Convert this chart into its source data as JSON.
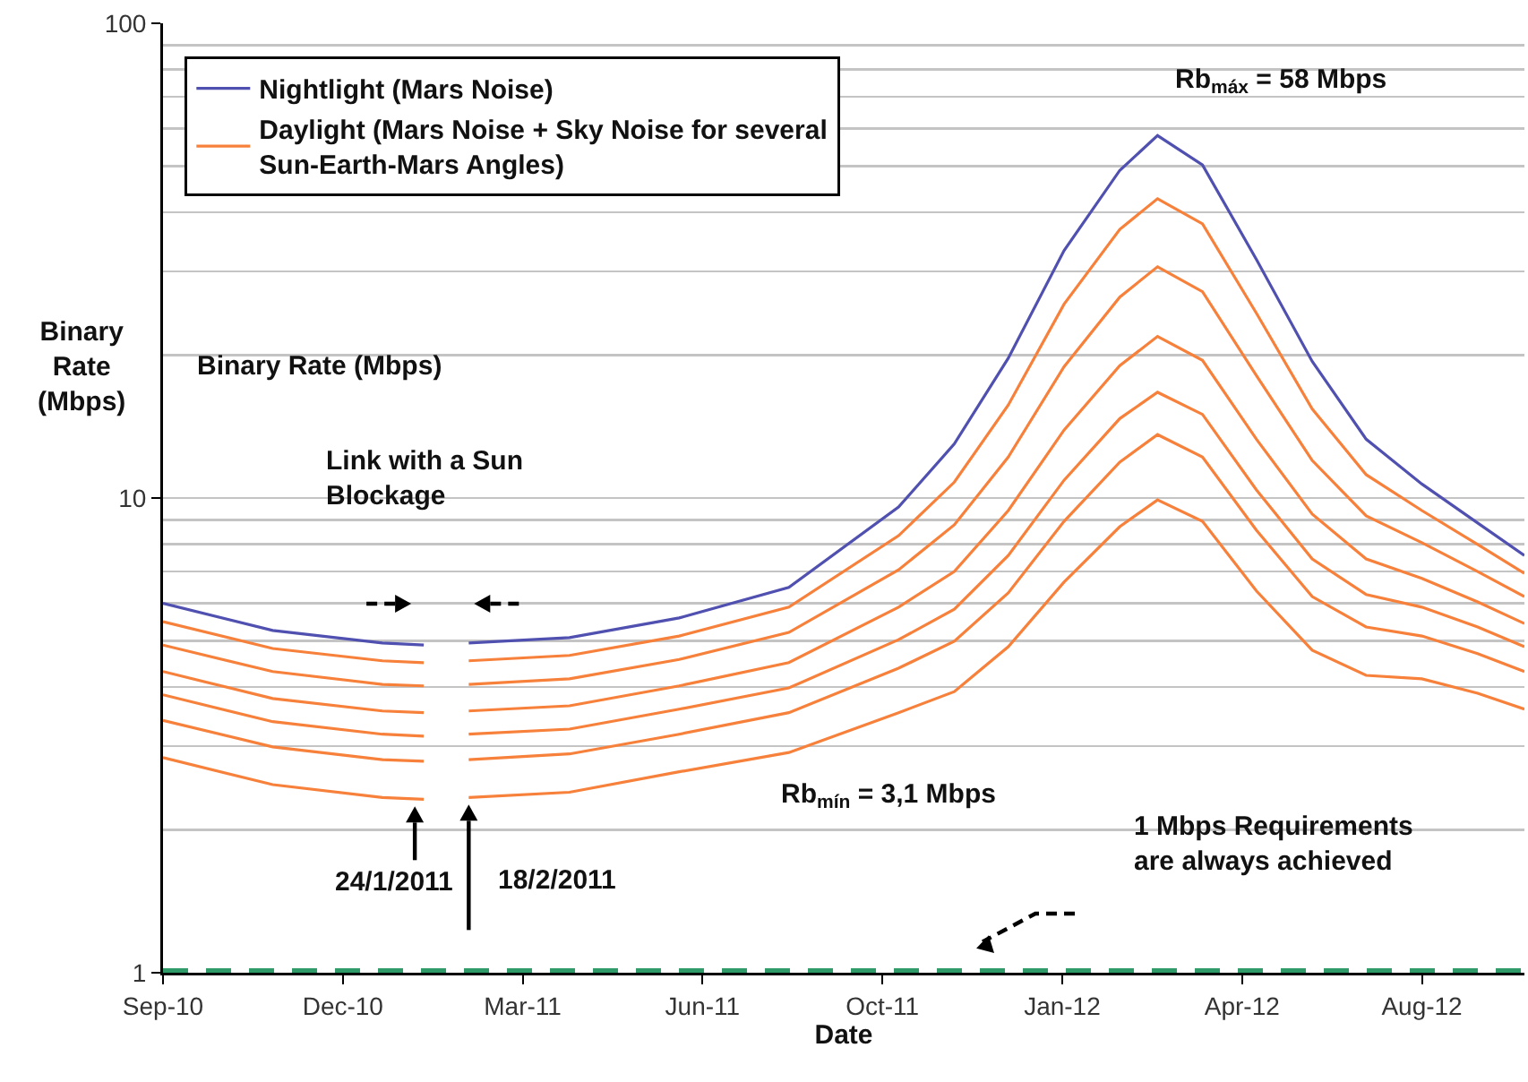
{
  "chart_data": {
    "type": "line",
    "xlabel": "Date",
    "ylabel": "Binary Rate (Mbps)",
    "x": [
      "2010-09-01",
      "2010-11-01",
      "2011-01-01",
      "2011-01-24",
      "2011-02-05",
      "2011-02-18",
      "2011-04-15",
      "2011-06-15",
      "2011-08-15",
      "2011-10-15",
      "2011-11-15",
      "2011-12-15",
      "2012-01-15",
      "2012-02-15",
      "2012-03-07",
      "2012-04-01",
      "2012-05-01",
      "2012-06-01",
      "2012-07-01",
      "2012-08-01",
      "2012-09-01",
      "2012-09-27"
    ],
    "series": [
      {
        "name": "Nightlight (Mars Noise)",
        "color": "#5050b0",
        "values": [
          6.0,
          5.26,
          4.95,
          4.9,
          null,
          4.95,
          5.08,
          5.59,
          6.48,
          9.57,
          13.0,
          19.7,
          33.2,
          49.0,
          58,
          50.3,
          31.8,
          19.4,
          13.3,
          10.7,
          8.86,
          7.57
        ]
      },
      {
        "name": "Daylight (Mars Noise + Sky Noise for several Sun-Earth-Mars Angles)",
        "color": "#f7813b",
        "values": [
          5.49,
          4.82,
          4.54,
          4.5,
          null,
          4.54,
          4.66,
          5.12,
          5.89,
          8.33,
          10.8,
          15.7,
          25.6,
          36.8,
          42.7,
          37.8,
          24.5,
          15.4,
          11.2,
          9.41,
          7.98,
          6.94
        ]
      },
      {
        "color": "#f7813b",
        "values": [
          4.9,
          4.31,
          4.05,
          4.02,
          null,
          4.05,
          4.16,
          4.57,
          5.21,
          7.06,
          8.78,
          12.2,
          18.9,
          26.5,
          30.7,
          27.2,
          18.1,
          12.0,
          9.17,
          8.05,
          7.0,
          6.2
        ]
      },
      {
        "color": "#f7813b",
        "values": [
          4.31,
          3.78,
          3.56,
          3.53,
          null,
          3.56,
          3.65,
          4.02,
          4.5,
          5.89,
          7.0,
          9.41,
          13.9,
          19.0,
          21.9,
          19.5,
          13.3,
          9.25,
          7.44,
          6.77,
          6.04,
          5.44
        ]
      },
      {
        "color": "#f7813b",
        "values": [
          3.85,
          3.38,
          3.18,
          3.15,
          null,
          3.18,
          3.26,
          3.59,
          3.98,
          5.03,
          5.83,
          7.57,
          10.9,
          14.7,
          16.7,
          15.0,
          10.4,
          7.44,
          6.26,
          5.89,
          5.35,
          4.86
        ]
      },
      {
        "color": "#f7813b",
        "values": [
          3.4,
          2.99,
          2.81,
          2.79,
          null,
          2.81,
          2.89,
          3.18,
          3.53,
          4.38,
          4.99,
          6.31,
          8.93,
          11.9,
          13.6,
          12.2,
          8.55,
          6.2,
          5.35,
          5.12,
          4.7,
          4.31
        ]
      },
      {
        "color": "#f7813b",
        "values": [
          2.84,
          2.49,
          2.34,
          2.32,
          null,
          2.34,
          2.4,
          2.65,
          2.91,
          3.53,
          3.91,
          4.86,
          6.65,
          8.7,
          9.91,
          8.93,
          6.37,
          4.78,
          4.23,
          4.16,
          3.88,
          3.59
        ]
      },
      {
        "color": "#2f9b68",
        "x": [
          "2010-09-01",
          "2012-09-27"
        ],
        "values": [
          1,
          1
        ],
        "line_style": "dashed"
      }
    ],
    "xlim": [
      "2010-09-01",
      "2012-09-27"
    ],
    "xticks": [
      {
        "value": "2010-09-01",
        "label": "Sep-10"
      },
      {
        "value": "2010-12-10",
        "label": "Dec-10"
      },
      {
        "value": "2011-03-20",
        "label": "Mar-11"
      },
      {
        "value": "2011-06-28",
        "label": "Jun-11"
      },
      {
        "value": "2011-10-06",
        "label": "Oct-11"
      },
      {
        "value": "2012-01-14",
        "label": "Jan-12"
      },
      {
        "value": "2012-04-23",
        "label": "Apr-12"
      },
      {
        "value": "2012-08-01",
        "label": "Aug-12"
      }
    ],
    "ylim": [
      1,
      100
    ],
    "yticks": [
      1,
      10,
      100
    ],
    "log": true,
    "grid": "y",
    "legend": "top left",
    "marker": "none",
    "line_style": "solid",
    "annotations": [
      "Binary Rate (Mbps)",
      "Link with a Sun Blockage",
      "Rb$_{mín}$ = 3,1 Mbps",
      "1 Mbps Requirements are always achieved",
      {
        "text": "Rb$_{máx}$ = 58 Mbps",
        "x": "2012-03-07",
        "y": 58
      },
      {
        "text": "24/1/2011",
        "x": "2011-01-24",
        "y": 2.32
      },
      {
        "text": "18/2/2011",
        "x": "2011-02-18",
        "y": 2.34
      }
    ]
  }
}
